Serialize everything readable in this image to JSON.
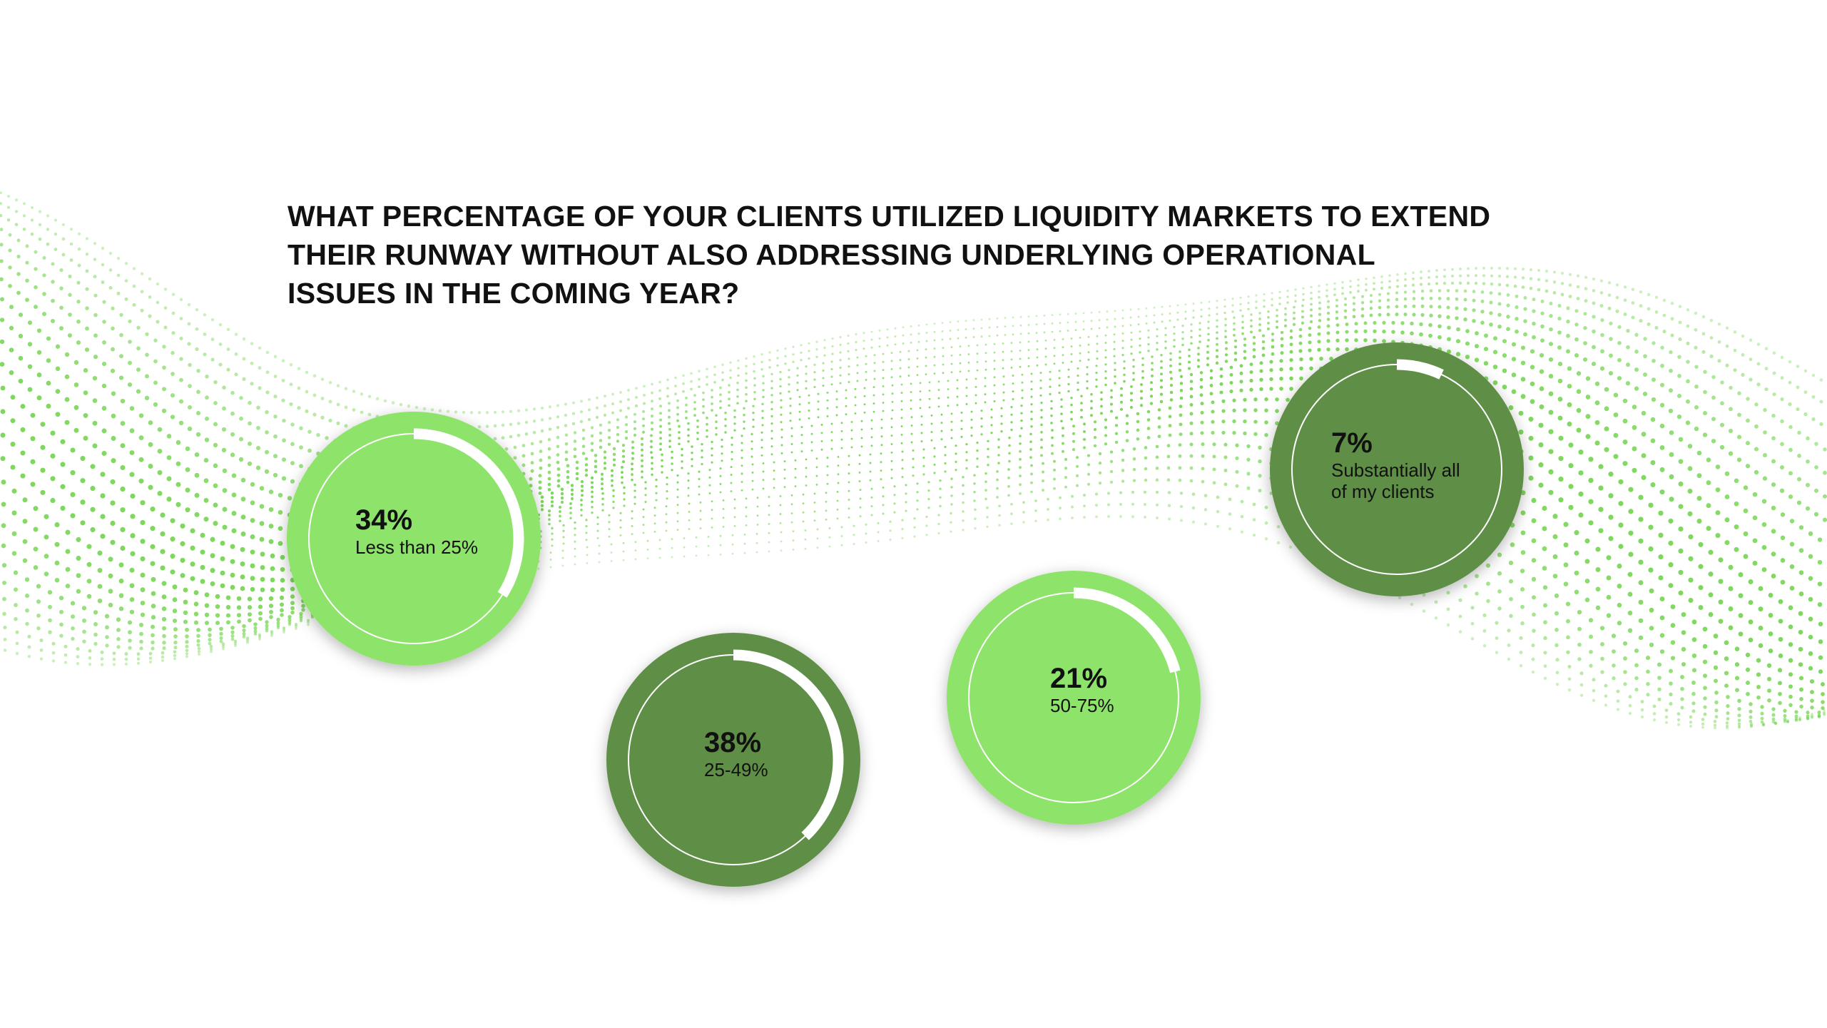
{
  "chart_data": {
    "type": "pie",
    "title_lines": [
      "WHAT PERCENTAGE OF YOUR CLIENTS UTILIZED LIQUIDITY MARKETS TO EXTEND",
      "THEIR RUNWAY WITHOUT ALSO ADDRESSING UNDERLYING OPERATIONAL",
      "ISSUES IN THE COMING YEAR?"
    ],
    "categories": [
      "Less than 25%",
      "25-49%",
      "50-75%",
      "Substantially all\nof my clients"
    ],
    "values": [
      34,
      38,
      21,
      7
    ],
    "value_labels": [
      "34%",
      "38%",
      "21%",
      "7%"
    ],
    "unit": "%",
    "colors": {
      "light_green": "#8ee36a",
      "dark_green": "#5e8f47",
      "arc": "#ffffff",
      "wave_dots": "#6fd44a",
      "title": "#111111"
    },
    "circle_fills": [
      "light_green",
      "dark_green",
      "light_green",
      "dark_green"
    ]
  }
}
